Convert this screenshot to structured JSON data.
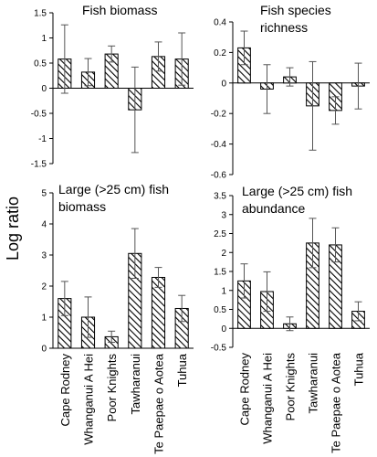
{
  "figure": {
    "ylabel": "Log ratio",
    "categories": [
      "Cape Rodney",
      "Whanganui A Hei",
      "Poor Knights",
      "Tawharanui",
      "Te Paepae o Aotea",
      "Tuhua"
    ]
  },
  "chart_data": [
    {
      "type": "bar",
      "title": [
        "Fish biomass"
      ],
      "categories": [
        "Cape Rodney",
        "Whanganui A Hei",
        "Poor Knights",
        "Tawharanui",
        "Te Paepae o Aotea",
        "Tuhua"
      ],
      "values": [
        0.58,
        0.32,
        0.68,
        -0.43,
        0.63,
        0.58
      ],
      "errors": [
        0.68,
        0.27,
        0.16,
        0.85,
        0.29,
        0.52
      ],
      "ylim": [
        -1.5,
        1.5
      ],
      "yticks": [
        "1.5",
        "1",
        "0.5",
        "0",
        "-0.5",
        "-1",
        "-1.5"
      ],
      "ytick_values": [
        1.5,
        1,
        0.5,
        0,
        -0.5,
        -1,
        -1.5
      ],
      "show_categories": false
    },
    {
      "type": "bar",
      "title": [
        "Fish species",
        "richness"
      ],
      "categories": [
        "Cape Rodney",
        "Whanganui A Hei",
        "Poor Knights",
        "Tawharanui",
        "Te Paepae o Aotea",
        "Tuhua"
      ],
      "values": [
        0.23,
        -0.04,
        0.04,
        -0.15,
        -0.18,
        -0.02
      ],
      "errors": [
        0.11,
        0.16,
        0.06,
        0.29,
        0.09,
        0.15
      ],
      "ylim": [
        -0.6,
        0.4
      ],
      "yticks": [
        "0.4",
        "0.2",
        "0",
        "-0.2",
        "-0.4",
        "-0.6"
      ],
      "ytick_values": [
        0.4,
        0.2,
        0,
        -0.2,
        -0.4,
        -0.6
      ],
      "show_categories": false
    },
    {
      "type": "bar",
      "title": [
        "Large (>25 cm) fish",
        "biomass"
      ],
      "categories": [
        "Cape Rodney",
        "Whanganui A Hei",
        "Poor Knights",
        "Tawharanui",
        "Te Paepae o Aotea",
        "Tuhua"
      ],
      "values": [
        1.6,
        1.0,
        0.37,
        3.05,
        2.28,
        1.28
      ],
      "errors": [
        0.55,
        0.65,
        0.18,
        0.8,
        0.32,
        0.42
      ],
      "ylim": [
        0,
        5
      ],
      "yticks": [
        "5",
        "4",
        "3",
        "2",
        "1",
        "0"
      ],
      "ytick_values": [
        5,
        4,
        3,
        2,
        1,
        0
      ],
      "show_categories": true
    },
    {
      "type": "bar",
      "title": [
        "Large (>25 cm) fish",
        "abundance"
      ],
      "categories": [
        "Cape Rodney",
        "Whanganui A Hei",
        "Poor Knights",
        "Tawharanui",
        "Te Paepae o Aotea",
        "Tuhua"
      ],
      "values": [
        1.25,
        0.97,
        0.12,
        2.25,
        2.2,
        0.45
      ],
      "errors": [
        0.45,
        0.52,
        0.18,
        0.65,
        0.45,
        0.25
      ],
      "ylim": [
        -0.5,
        3.5
      ],
      "yticks": [
        "3.5",
        "3",
        "2.5",
        "2",
        "1.5",
        "1",
        "0.5",
        "0",
        "-0.5"
      ],
      "ytick_values": [
        3.5,
        3,
        2.5,
        2,
        1.5,
        1,
        0.5,
        0,
        -0.5
      ],
      "show_categories": true
    }
  ]
}
